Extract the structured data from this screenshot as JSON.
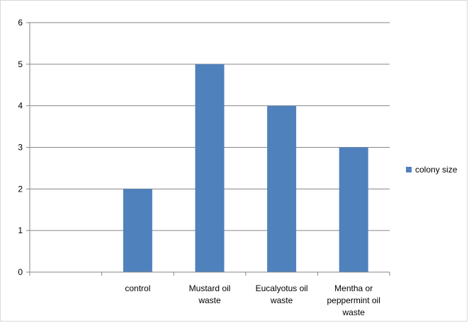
{
  "chart_data": {
    "type": "bar",
    "categories": [
      "",
      "control",
      "Mustard oil waste",
      "Eucalyotus oil waste",
      "Mentha or peppermint oil waste"
    ],
    "category_lines": [
      [],
      [
        "control"
      ],
      [
        "Mustard oil",
        "waste"
      ],
      [
        "Eucalyotus oil",
        "waste"
      ],
      [
        "Mentha or",
        "peppermint oil",
        "waste"
      ]
    ],
    "series": [
      {
        "name": "colony size",
        "values": [
          null,
          2,
          5,
          4,
          3
        ],
        "color": "#4f81bd"
      }
    ],
    "ylim": [
      0,
      6
    ],
    "yticks": [
      0,
      1,
      2,
      3,
      4,
      5,
      6
    ],
    "grid": true,
    "legend": "right",
    "title": "",
    "xlabel": "",
    "ylabel": ""
  }
}
